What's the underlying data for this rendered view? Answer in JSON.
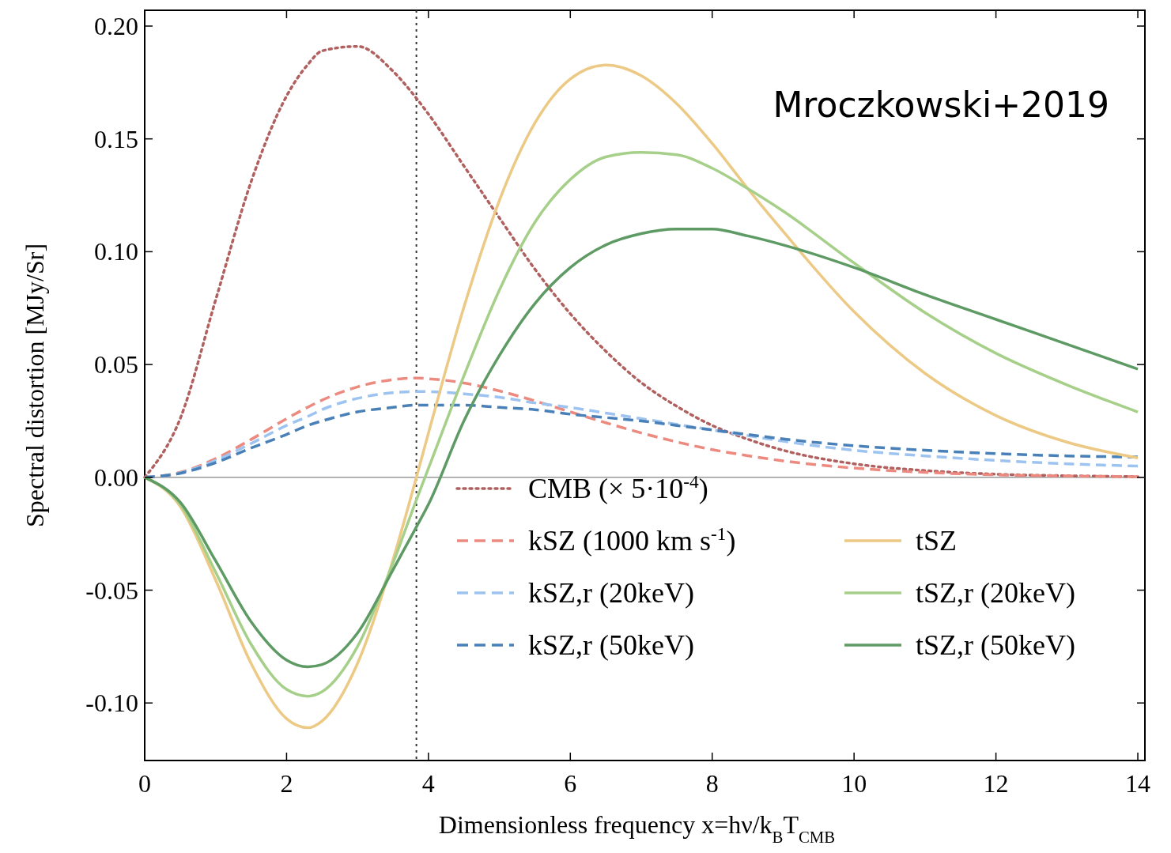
{
  "chart_data": {
    "type": "line",
    "xlabel": "Dimensionless frequency x=hν/k$_{B}$T$_{CMB}$",
    "ylabel": "Spectral distortion [MJy/Sr]",
    "x": [
      0,
      0.5,
      1,
      1.5,
      2,
      2.3,
      2.5,
      3,
      3.5,
      3.83,
      4,
      4.5,
      5,
      5.5,
      6,
      6.5,
      7,
      7.5,
      8,
      8.5,
      9,
      10,
      11,
      12,
      13,
      14
    ],
    "xlim": [
      0,
      14.1
    ],
    "xticks": [
      0,
      2,
      4,
      6,
      8,
      10,
      12,
      14
    ],
    "ylim": [
      -0.1255,
      0.207
    ],
    "yticks": [
      {
        "value": -0.1,
        "label": "-0.10"
      },
      -0.05,
      {
        "value": 0,
        "label": "0.00"
      },
      0.05,
      {
        "value": 0.1,
        "label": "0.10"
      },
      0.15,
      {
        "value": 0.2,
        "label": "0.20"
      }
    ],
    "grid": false,
    "legend": "bottom right",
    "series": [
      {
        "name": "CMB (× 5·10$^{-4}$)",
        "color": "#b0605e",
        "line_style": "dotted",
        "values": [
          0,
          0.026,
          0.0786,
          0.131,
          0.169,
          0.183,
          0.189,
          0.191,
          0.18,
          0.168,
          0.161,
          0.138,
          0.115,
          0.0923,
          0.0725,
          0.0559,
          0.042,
          0.0315,
          0.023,
          0.0169,
          0.012,
          0.006,
          0.003,
          0.0014,
          0.0007,
          0.0003
        ]
      },
      {
        "name": "kSZ  (1000 km s$^{-1}$)",
        "color": "#ec8a80",
        "line_style": "dashed",
        "values": [
          0,
          0.0022,
          0.0083,
          0.0168,
          0.026,
          0.0311,
          0.0342,
          0.0401,
          0.0433,
          0.044,
          0.0437,
          0.0418,
          0.0383,
          0.0339,
          0.029,
          0.0242,
          0.0197,
          0.0157,
          0.0123,
          0.0096,
          0.0073,
          0.0041,
          0.0022,
          0.0011,
          0.0006,
          0.0003
        ]
      },
      {
        "name": "kSZ,r (20keV)",
        "color": "#9dc3f0",
        "line_style": "dashed",
        "values": [
          0,
          0.002,
          0.0075,
          0.015,
          0.023,
          0.027,
          0.03,
          0.035,
          0.0375,
          0.038,
          0.038,
          0.037,
          0.0355,
          0.033,
          0.031,
          0.0285,
          0.026,
          0.0235,
          0.021,
          0.0185,
          0.016,
          0.012,
          0.0095,
          0.0075,
          0.006,
          0.005
        ]
      },
      {
        "name": "kSZ,r (50keV)",
        "color": "#4a80b8",
        "line_style": "dashed",
        "values": [
          0,
          0.0018,
          0.0065,
          0.013,
          0.019,
          0.023,
          0.025,
          0.029,
          0.031,
          0.032,
          0.032,
          0.032,
          0.031,
          0.03,
          0.028,
          0.0265,
          0.025,
          0.023,
          0.021,
          0.019,
          0.017,
          0.014,
          0.012,
          0.0105,
          0.0095,
          0.009
        ]
      },
      {
        "name": "tSZ",
        "color": "#ecc985",
        "line_style": "solid",
        "values": [
          0,
          -0.0129,
          -0.0455,
          -0.0825,
          -0.107,
          -0.111,
          -0.108,
          -0.0825,
          -0.0366,
          0,
          0.0196,
          0.0754,
          0.1227,
          0.157,
          0.1766,
          0.1827,
          0.178,
          0.1656,
          0.148,
          0.128,
          0.109,
          0.0734,
          0.0461,
          0.0274,
          0.0156,
          0.0086
        ]
      },
      {
        "name": "tSZ,r (20keV)",
        "color": "#a6d08a",
        "line_style": "solid",
        "values": [
          0,
          -0.012,
          -0.042,
          -0.074,
          -0.094,
          -0.097,
          -0.095,
          -0.075,
          -0.038,
          -0.01,
          0.004,
          0.045,
          0.083,
          0.113,
          0.132,
          0.142,
          0.144,
          0.143,
          0.137,
          0.128,
          0.118,
          0.095,
          0.073,
          0.055,
          0.041,
          0.029
        ]
      },
      {
        "name": "tSZ,r (50keV)",
        "color": "#5e9a64",
        "line_style": "solid",
        "values": [
          0,
          -0.011,
          -0.037,
          -0.064,
          -0.081,
          -0.084,
          -0.083,
          -0.069,
          -0.041,
          -0.022,
          -0.012,
          0.025,
          0.054,
          0.077,
          0.093,
          0.103,
          0.108,
          0.11,
          0.11,
          0.107,
          0.103,
          0.093,
          0.081,
          0.07,
          0.059,
          0.048
        ]
      }
    ],
    "ref_lines": [
      {
        "axis": "y",
        "value": 0,
        "color": "#999999",
        "line_style": "solid"
      },
      {
        "axis": "x",
        "value": 3.83,
        "color": "#333333",
        "line_style": "dotted"
      }
    ],
    "annotations": [
      "Mroczkowski+2019"
    ]
  }
}
